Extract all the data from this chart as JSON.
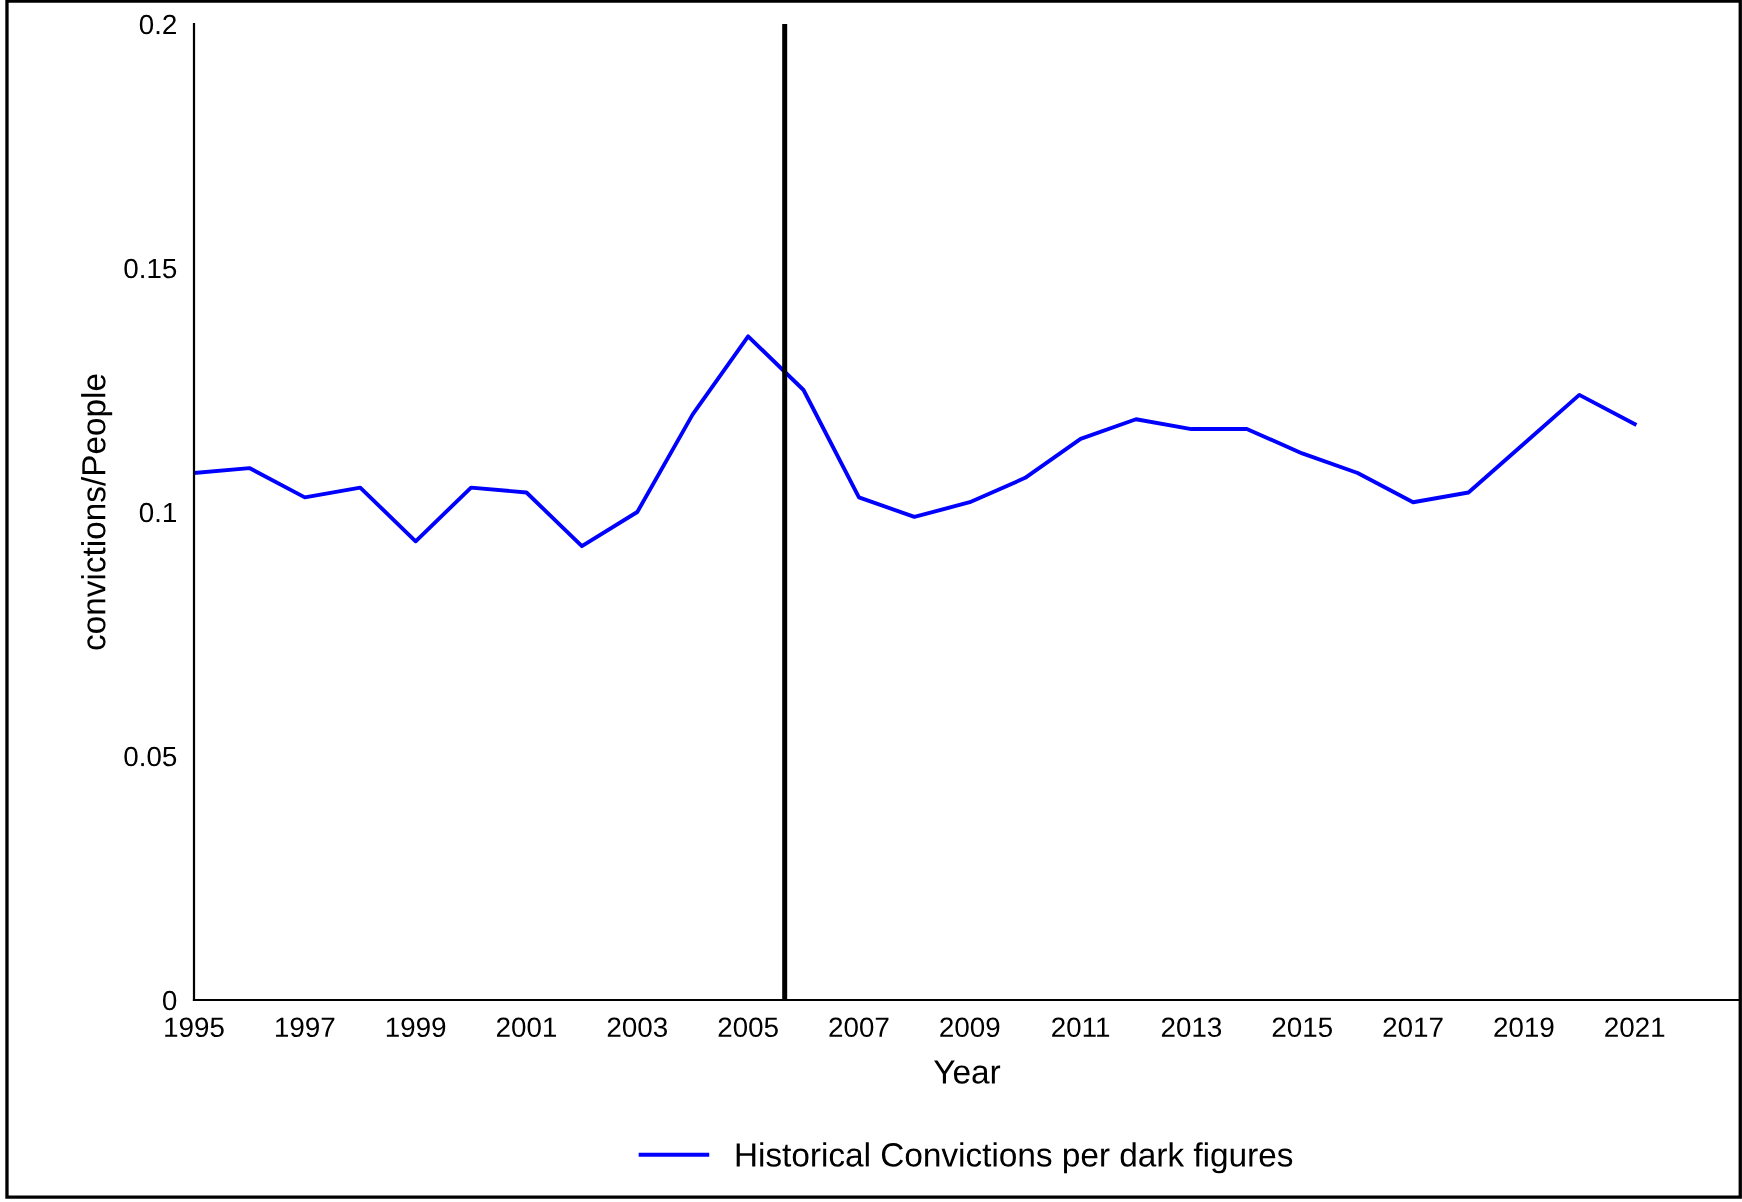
{
  "chart_data": {
    "type": "line",
    "xlabel": "Year",
    "ylabel": "convictions/People",
    "x": [
      1995,
      1996,
      1997,
      1998,
      1999,
      2000,
      2001,
      2002,
      2003,
      2004,
      2005,
      2006,
      2007,
      2008,
      2009,
      2010,
      2011,
      2012,
      2013,
      2014,
      2015,
      2016,
      2017,
      2018,
      2019,
      2020,
      2021
    ],
    "series": [
      {
        "name": "Historical Convictions per dark figures",
        "color": "#0000ff",
        "values": [
          0.108,
          0.109,
          0.103,
          0.105,
          0.094,
          0.105,
          0.104,
          0.093,
          0.1,
          0.12,
          0.136,
          0.125,
          0.103,
          0.099,
          0.102,
          0.107,
          0.115,
          0.119,
          0.117,
          0.117,
          0.112,
          0.108,
          0.102,
          0.104,
          0.114,
          0.124,
          0.118
        ]
      }
    ],
    "xlim": [
      1995,
      2022.9
    ],
    "xticks": [
      1995,
      1997,
      1999,
      2001,
      2003,
      2005,
      2007,
      2009,
      2011,
      2013,
      2015,
      2017,
      2019,
      2021
    ],
    "ylim": [
      0,
      0.2
    ],
    "yticks": [
      0,
      0.05,
      0.1,
      0.15,
      0.2
    ],
    "ref_lines": [
      {
        "axis": "x",
        "value": 2005.66,
        "color": "#000000"
      }
    ],
    "grid": false,
    "legend": "bottom",
    "marker": "none",
    "line_style": "solid"
  }
}
